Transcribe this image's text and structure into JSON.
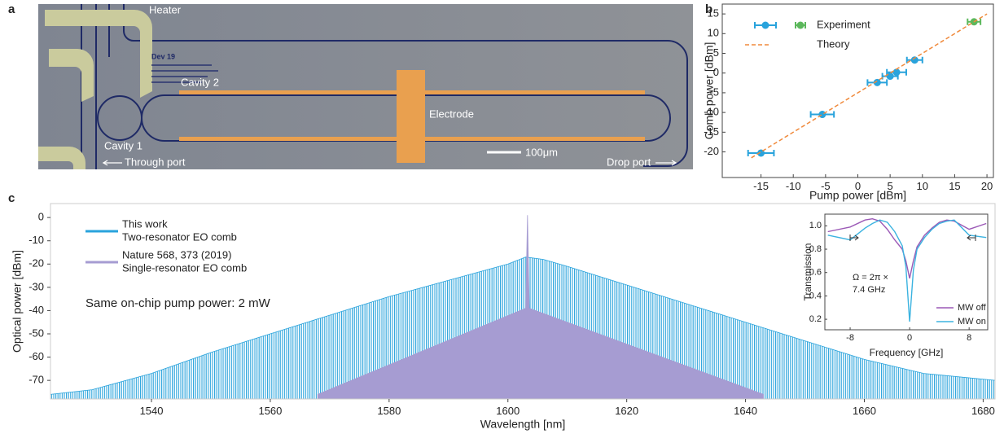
{
  "image": {
    "panel": "a",
    "labels": [
      "Heater",
      "Dev 19",
      "Cavity 2",
      "Electrode",
      "Cavity 1",
      "Through port",
      "100μm",
      "Drop port"
    ]
  },
  "chart_data": [
    {
      "type": "scatter",
      "panel": "b",
      "xlabel": "Pump power [dBm]",
      "ylabel": "Comb power [dBm]",
      "xlim": [
        -21,
        21
      ],
      "ylim": [
        -26.5,
        17.5
      ],
      "xticks": [
        -15,
        -10,
        -5,
        0,
        5,
        10,
        15,
        20
      ],
      "yticks": [
        -20,
        -15,
        -10,
        -5,
        0,
        5,
        10,
        15
      ],
      "legend": "upper left",
      "series": [
        {
          "name": "Experiment",
          "color": "#29a3dc",
          "x": [
            -15,
            -5.5,
            3,
            5,
            6,
            8.8
          ],
          "values": [
            -20.3,
            -10.5,
            -2.4,
            -0.8,
            0.2,
            3.3
          ],
          "xerr": [
            2,
            1.8,
            1.5,
            1.2,
            1.5,
            1.2
          ]
        },
        {
          "color": "#5cb85c",
          "x": [
            18
          ],
          "values": [
            13
          ],
          "xerr": [
            1
          ]
        },
        {
          "name": "Theory",
          "color": "#f08a3c",
          "dash": true,
          "x": [
            -16.5,
            20
          ],
          "values": [
            -21.5,
            15
          ]
        }
      ]
    },
    {
      "type": "area",
      "panel": "c",
      "xlabel": "Wavelength [nm]",
      "ylabel": "Optical power [dBm]",
      "xlim": [
        1523,
        1682
      ],
      "ylim": [
        -78,
        6
      ],
      "xticks": [
        1540,
        1560,
        1580,
        1600,
        1620,
        1640,
        1660,
        1680
      ],
      "yticks": [
        0,
        -10,
        -20,
        -30,
        -40,
        -50,
        -60,
        -70
      ],
      "legend": "upper left",
      "annotations": [
        "Same on-chip pump power: 2 mW"
      ],
      "series": [
        {
          "name": "This work",
          "description": "Two-resonator EO comb",
          "color": "#29a3dc",
          "fill": "lines",
          "x": [
            1523,
            1530,
            1540,
            1550,
            1560,
            1570,
            1580,
            1590,
            1600,
            1603,
            1606,
            1610,
            1620,
            1630,
            1640,
            1650,
            1660,
            1670,
            1682
          ],
          "values": [
            -76,
            -74,
            -67,
            -58,
            -50,
            -42,
            -34,
            -27,
            -20,
            -17,
            -18,
            -21,
            -29,
            -37,
            -45,
            -53,
            -61,
            -67,
            -70
          ]
        },
        {
          "name": "Nature 568, 373 (2019)",
          "description": "Single-resonator EO comb",
          "color": "#a69cd2",
          "fill": "solid",
          "x": [
            1568,
            1603,
            1603.3,
            1603.6,
            1643
          ],
          "values": [
            -76,
            -39,
            1,
            -39,
            -76
          ]
        }
      ]
    },
    {
      "type": "line",
      "xlabel": "Frequency  [GHz]",
      "ylabel": "Transmission",
      "xlim": [
        -11.4,
        10.5
      ],
      "ylim": [
        0.11,
        1.1
      ],
      "xticks": [
        -8,
        0,
        8
      ],
      "yticks": [
        0.2,
        0.4,
        0.6,
        0.8,
        {
          "value": 1,
          "label": "1.0"
        }
      ],
      "legend": "lower right",
      "annotations": [
        "Ω = 2π ×",
        "7.4 GHz"
      ],
      "series": [
        {
          "name": "MW off",
          "color": "#9b59b6",
          "x": [
            -11,
            -8,
            -6,
            -5,
            -4,
            -3,
            -2,
            -1,
            -0.5,
            0,
            0.5,
            1,
            2,
            3,
            4,
            5,
            6,
            8,
            10.3
          ],
          "values": [
            0.95,
            0.99,
            1.05,
            1.06,
            1.04,
            0.97,
            0.88,
            0.8,
            0.7,
            0.55,
            0.7,
            0.82,
            0.92,
            0.98,
            1.03,
            1.05,
            1.04,
            0.97,
            1.02
          ]
        },
        {
          "name": "MW on",
          "color": "#3bb3e0",
          "x": [
            -11,
            -8,
            -6,
            -5,
            -4,
            -3,
            -2,
            -1,
            -0.5,
            0,
            0.5,
            1,
            2,
            3,
            4,
            5,
            6,
            8,
            10.3
          ],
          "values": [
            0.92,
            0.88,
            0.98,
            1.02,
            1.05,
            1.03,
            0.95,
            0.83,
            0.65,
            0.18,
            0.62,
            0.8,
            0.9,
            0.97,
            1.02,
            1.04,
            1.05,
            0.92,
            0.9
          ]
        }
      ]
    }
  ]
}
